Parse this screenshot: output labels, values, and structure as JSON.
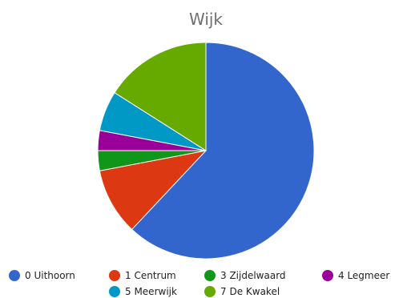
{
  "chart_data": {
    "type": "pie",
    "title": "Wijk",
    "categories": [
      "0 Uithoorn",
      "1 Centrum",
      "3 Zijdelwaard",
      "4 Legmeer",
      "5 Meerwijk",
      "7 De Kwakel"
    ],
    "values": [
      62,
      10,
      3,
      3,
      6,
      16
    ],
    "colors": [
      "#3366cc",
      "#dc3912",
      "#109618",
      "#990099",
      "#0099c6",
      "#66aa00"
    ],
    "legend_position": "bottom"
  }
}
